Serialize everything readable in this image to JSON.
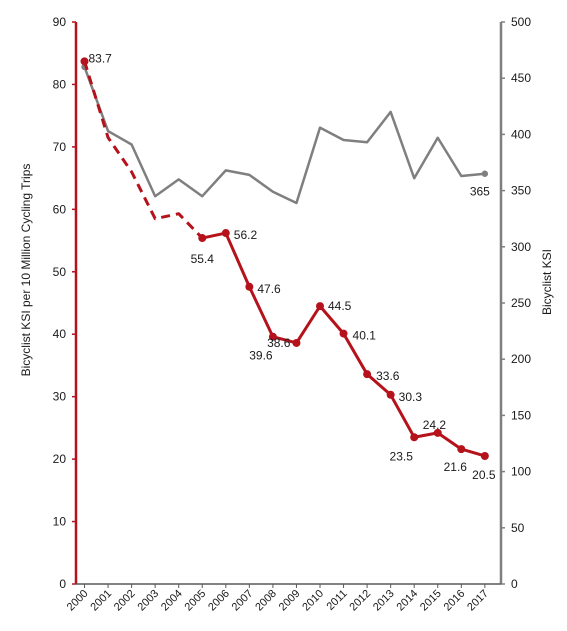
{
  "chart_data": {
    "type": "line",
    "categories": [
      "2000",
      "2001",
      "2002",
      "2003",
      "2004",
      "2005",
      "2006",
      "2007",
      "2008",
      "2009",
      "2010",
      "2011",
      "2012",
      "2013",
      "2014",
      "2015",
      "2016",
      "2017"
    ],
    "series": [
      {
        "axis": "left",
        "color": "#b5121b",
        "values": [
          83.7,
          71.5,
          66.0,
          58.5,
          59.3,
          55.4,
          56.2,
          47.6,
          39.6,
          38.6,
          44.5,
          40.1,
          33.6,
          30.3,
          23.5,
          24.2,
          21.6,
          20.5
        ],
        "style": "dashed from 2000 to 2005, solid from 2005 to 2017; markers at 2000 and 2005–2017",
        "data_labels": [
          {
            "index": 0,
            "text": "83.7"
          },
          {
            "index": 5,
            "text": "55.4"
          },
          {
            "index": 6,
            "text": "56.2"
          },
          {
            "index": 7,
            "text": "47.6"
          },
          {
            "index": 8,
            "text": "39.6"
          },
          {
            "index": 9,
            "text": "38.6"
          },
          {
            "index": 10,
            "text": "44.5"
          },
          {
            "index": 11,
            "text": "40.1"
          },
          {
            "index": 12,
            "text": "33.6"
          },
          {
            "index": 13,
            "text": "30.3"
          },
          {
            "index": 14,
            "text": "23.5"
          },
          {
            "index": 15,
            "text": "24.2"
          },
          {
            "index": 16,
            "text": "21.6"
          },
          {
            "index": 17,
            "text": "20.5"
          }
        ]
      },
      {
        "axis": "right",
        "color": "#7f7f7f",
        "values": [
          460,
          403,
          391,
          345,
          360,
          345,
          368,
          364,
          349,
          339,
          406,
          395,
          393,
          420,
          361,
          397,
          363,
          365
        ],
        "style": "solid; markers at 2000 and 2017",
        "data_labels": [
          {
            "index": 17,
            "text": "365"
          }
        ]
      }
    ],
    "left_axis": {
      "label": "Bicyclist KSI per 10 Million Cycling Trips",
      "min": 0,
      "max": 90,
      "ticks": [
        "0",
        "10",
        "20",
        "30",
        "40",
        "50",
        "60",
        "70",
        "80",
        "90"
      ],
      "color": "#b5121b"
    },
    "right_axis": {
      "label": "Bicyclist KSI",
      "min": 0,
      "max": 500,
      "ticks": [
        "0",
        "50",
        "100",
        "150",
        "200",
        "250",
        "300",
        "350",
        "400",
        "450",
        "500"
      ],
      "color": "#7f7f7f"
    },
    "title": "",
    "xlabel": "",
    "grid": false,
    "legend": "none"
  }
}
